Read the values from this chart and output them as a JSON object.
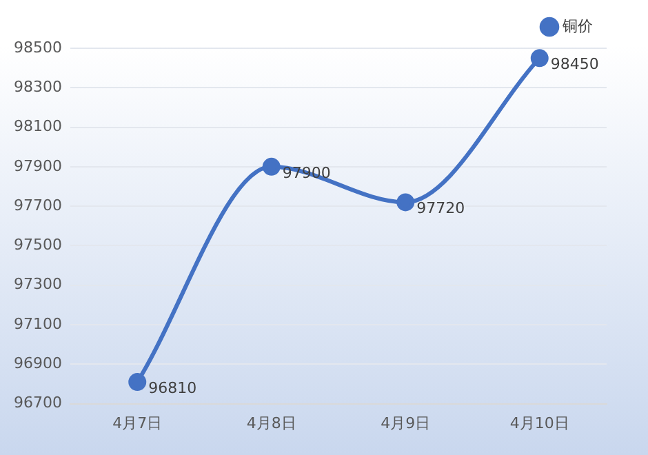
{
  "chart_data": {
    "type": "line",
    "categories": [
      "4月7日",
      "4月8日",
      "4月9日",
      "4月10日"
    ],
    "series": [
      {
        "name": "铜价",
        "color": "#4472c4",
        "values": [
          96810,
          97900,
          97720,
          98450
        ]
      }
    ],
    "ylim": [
      96700,
      98500
    ],
    "yticks": [
      96700,
      96900,
      97100,
      97300,
      97500,
      97700,
      97900,
      98100,
      98300,
      98500
    ],
    "grid": "y",
    "legend": "top right",
    "marker": "circle",
    "line_style": "solid",
    "data_labels": true
  }
}
